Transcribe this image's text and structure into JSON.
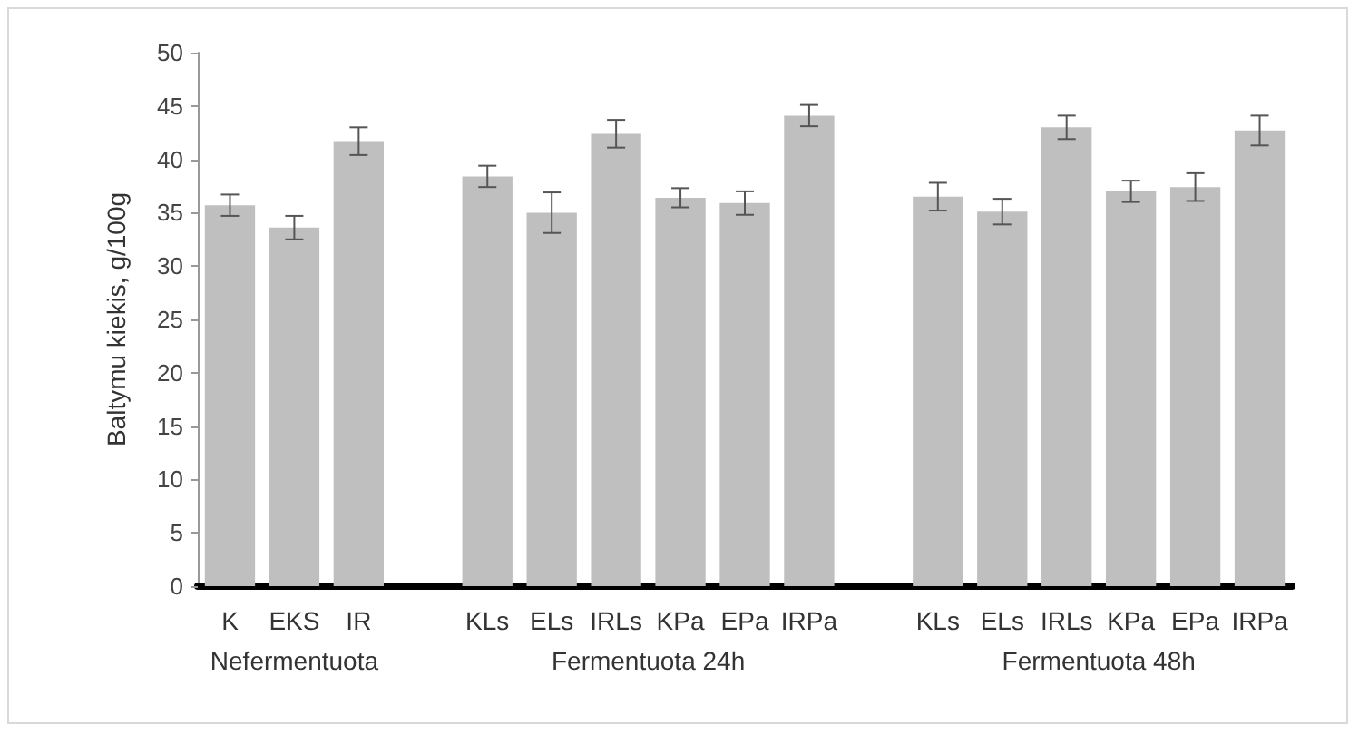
{
  "chart_data": {
    "type": "bar",
    "ylabel": "Baltymu kiekis, g/100g",
    "categories": [
      "K",
      "EKS",
      "IR",
      null,
      "KLs",
      "ELs",
      "IRLs",
      "KPa",
      "EPa",
      "IRPa",
      null,
      "KLs",
      "ELs",
      "IRLs",
      "KPa",
      "EPa",
      "IRPa"
    ],
    "values": [
      35.7,
      33.6,
      41.7,
      null,
      38.4,
      35.0,
      42.4,
      36.4,
      35.9,
      44.1,
      null,
      36.5,
      35.1,
      43.0,
      37.0,
      37.4,
      42.7
    ],
    "errors": [
      1.0,
      1.1,
      1.3,
      null,
      1.0,
      1.9,
      1.3,
      0.9,
      1.1,
      1.0,
      null,
      1.3,
      1.2,
      1.1,
      1.0,
      1.3,
      1.4
    ],
    "color": "#bfbfbf",
    "ylim": [
      0,
      50
    ],
    "yticks": [
      0,
      5,
      10,
      15,
      20,
      25,
      30,
      35,
      40,
      45,
      50
    ],
    "annotations": [
      "Nefermentuota",
      "Fermentuota 24h",
      "Fermentuota 48h"
    ]
  }
}
